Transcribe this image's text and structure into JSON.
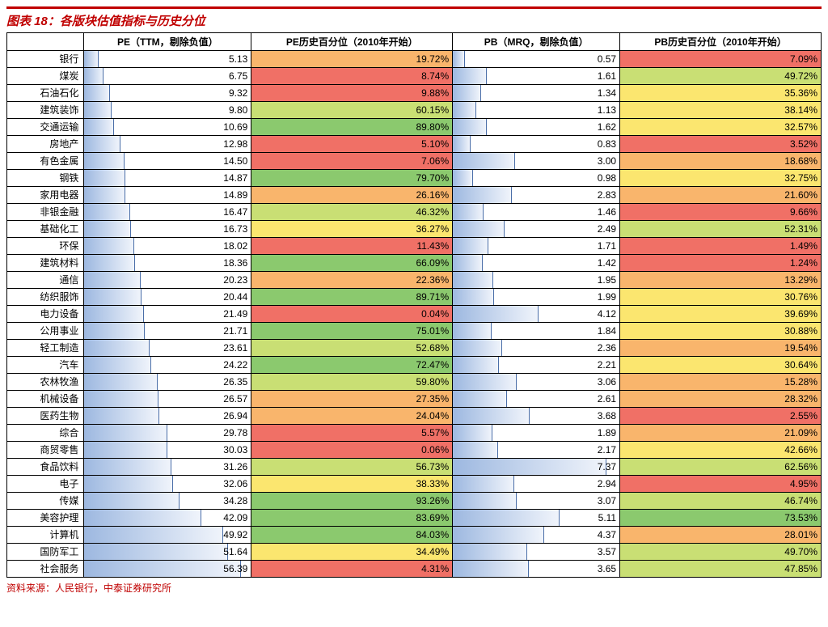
{
  "title": "图表 18：各版块估值指标与历史分位",
  "source": "资料来源：人民银行，中泰证券研究所",
  "columns": {
    "sector": "",
    "pe": "PE（TTM，剔除负值）",
    "pe_pct": "PE历史百分位（2010年开始）",
    "pb": "PB（MRQ，剔除负值）",
    "pb_pct": "PB历史百分位（2010年开始）"
  },
  "scale": {
    "pe_max": 60,
    "pb_max": 8
  },
  "heatmap_colors": {
    "red": "#f07066",
    "orange": "#f9b56c",
    "yellow": "#fbe66f",
    "lightgreen": "#c9df74",
    "green": "#8bc96e"
  },
  "bar_gradient_from": "#9db8e0",
  "bar_gradient_to": "#f0f4fb",
  "rows": [
    {
      "sector": "银行",
      "pe": 5.13,
      "pe_pct": 19.72,
      "pe_color": "orange",
      "pb": 0.57,
      "pb_pct": 7.09,
      "pb_color": "red"
    },
    {
      "sector": "煤炭",
      "pe": 6.75,
      "pe_pct": 8.74,
      "pe_color": "red",
      "pb": 1.61,
      "pb_pct": 49.72,
      "pb_color": "lightgreen"
    },
    {
      "sector": "石油石化",
      "pe": 9.32,
      "pe_pct": 9.88,
      "pe_color": "red",
      "pb": 1.34,
      "pb_pct": 35.36,
      "pb_color": "yellow"
    },
    {
      "sector": "建筑装饰",
      "pe": 9.8,
      "pe_pct": 60.15,
      "pe_color": "lightgreen",
      "pb": 1.13,
      "pb_pct": 38.14,
      "pb_color": "yellow"
    },
    {
      "sector": "交通运输",
      "pe": 10.69,
      "pe_pct": 89.8,
      "pe_color": "green",
      "pb": 1.62,
      "pb_pct": 32.57,
      "pb_color": "yellow"
    },
    {
      "sector": "房地产",
      "pe": 12.98,
      "pe_pct": 5.1,
      "pe_color": "red",
      "pb": 0.83,
      "pb_pct": 3.52,
      "pb_color": "red"
    },
    {
      "sector": "有色金属",
      "pe": 14.5,
      "pe_pct": 7.06,
      "pe_color": "red",
      "pb": 3.0,
      "pb_pct": 18.68,
      "pb_color": "orange"
    },
    {
      "sector": "钢铁",
      "pe": 14.87,
      "pe_pct": 79.7,
      "pe_color": "green",
      "pb": 0.98,
      "pb_pct": 32.75,
      "pb_color": "yellow"
    },
    {
      "sector": "家用电器",
      "pe": 14.89,
      "pe_pct": 26.16,
      "pe_color": "orange",
      "pb": 2.83,
      "pb_pct": 21.6,
      "pb_color": "orange"
    },
    {
      "sector": "非银金融",
      "pe": 16.47,
      "pe_pct": 46.32,
      "pe_color": "lightgreen",
      "pb": 1.46,
      "pb_pct": 9.66,
      "pb_color": "red"
    },
    {
      "sector": "基础化工",
      "pe": 16.73,
      "pe_pct": 36.27,
      "pe_color": "yellow",
      "pb": 2.49,
      "pb_pct": 52.31,
      "pb_color": "lightgreen"
    },
    {
      "sector": "环保",
      "pe": 18.02,
      "pe_pct": 11.43,
      "pe_color": "red",
      "pb": 1.71,
      "pb_pct": 1.49,
      "pb_color": "red"
    },
    {
      "sector": "建筑材料",
      "pe": 18.36,
      "pe_pct": 66.09,
      "pe_color": "green",
      "pb": 1.42,
      "pb_pct": 1.24,
      "pb_color": "red"
    },
    {
      "sector": "通信",
      "pe": 20.23,
      "pe_pct": 22.36,
      "pe_color": "orange",
      "pb": 1.95,
      "pb_pct": 13.29,
      "pb_color": "orange"
    },
    {
      "sector": "纺织服饰",
      "pe": 20.44,
      "pe_pct": 89.71,
      "pe_color": "green",
      "pb": 1.99,
      "pb_pct": 30.76,
      "pb_color": "yellow"
    },
    {
      "sector": "电力设备",
      "pe": 21.49,
      "pe_pct": 0.04,
      "pe_color": "red",
      "pb": 4.12,
      "pb_pct": 39.69,
      "pb_color": "yellow"
    },
    {
      "sector": "公用事业",
      "pe": 21.71,
      "pe_pct": 75.01,
      "pe_color": "green",
      "pb": 1.84,
      "pb_pct": 30.88,
      "pb_color": "yellow"
    },
    {
      "sector": "轻工制造",
      "pe": 23.61,
      "pe_pct": 52.68,
      "pe_color": "lightgreen",
      "pb": 2.36,
      "pb_pct": 19.54,
      "pb_color": "orange"
    },
    {
      "sector": "汽车",
      "pe": 24.22,
      "pe_pct": 72.47,
      "pe_color": "green",
      "pb": 2.21,
      "pb_pct": 30.64,
      "pb_color": "yellow"
    },
    {
      "sector": "农林牧渔",
      "pe": 26.35,
      "pe_pct": 59.8,
      "pe_color": "lightgreen",
      "pb": 3.06,
      "pb_pct": 15.28,
      "pb_color": "orange"
    },
    {
      "sector": "机械设备",
      "pe": 26.57,
      "pe_pct": 27.35,
      "pe_color": "orange",
      "pb": 2.61,
      "pb_pct": 28.32,
      "pb_color": "orange"
    },
    {
      "sector": "医药生物",
      "pe": 26.94,
      "pe_pct": 24.04,
      "pe_color": "orange",
      "pb": 3.68,
      "pb_pct": 2.55,
      "pb_color": "red"
    },
    {
      "sector": "综合",
      "pe": 29.78,
      "pe_pct": 5.57,
      "pe_color": "red",
      "pb": 1.89,
      "pb_pct": 21.09,
      "pb_color": "orange"
    },
    {
      "sector": "商贸零售",
      "pe": 30.03,
      "pe_pct": 0.06,
      "pe_color": "red",
      "pb": 2.17,
      "pb_pct": 42.66,
      "pb_color": "yellow"
    },
    {
      "sector": "食品饮料",
      "pe": 31.26,
      "pe_pct": 56.73,
      "pe_color": "lightgreen",
      "pb": 7.37,
      "pb_pct": 62.56,
      "pb_color": "lightgreen"
    },
    {
      "sector": "电子",
      "pe": 32.06,
      "pe_pct": 38.33,
      "pe_color": "yellow",
      "pb": 2.94,
      "pb_pct": 4.95,
      "pb_color": "red"
    },
    {
      "sector": "传媒",
      "pe": 34.28,
      "pe_pct": 93.26,
      "pe_color": "green",
      "pb": 3.07,
      "pb_pct": 46.74,
      "pb_color": "lightgreen"
    },
    {
      "sector": "美容护理",
      "pe": 42.09,
      "pe_pct": 83.69,
      "pe_color": "green",
      "pb": 5.11,
      "pb_pct": 73.53,
      "pb_color": "green"
    },
    {
      "sector": "计算机",
      "pe": 49.92,
      "pe_pct": 84.03,
      "pe_color": "green",
      "pb": 4.37,
      "pb_pct": 28.01,
      "pb_color": "orange"
    },
    {
      "sector": "国防军工",
      "pe": 51.64,
      "pe_pct": 34.49,
      "pe_color": "yellow",
      "pb": 3.57,
      "pb_pct": 49.7,
      "pb_color": "lightgreen"
    },
    {
      "sector": "社会服务",
      "pe": 56.39,
      "pe_pct": 4.31,
      "pe_color": "red",
      "pb": 3.65,
      "pb_pct": 47.85,
      "pb_color": "lightgreen"
    }
  ]
}
